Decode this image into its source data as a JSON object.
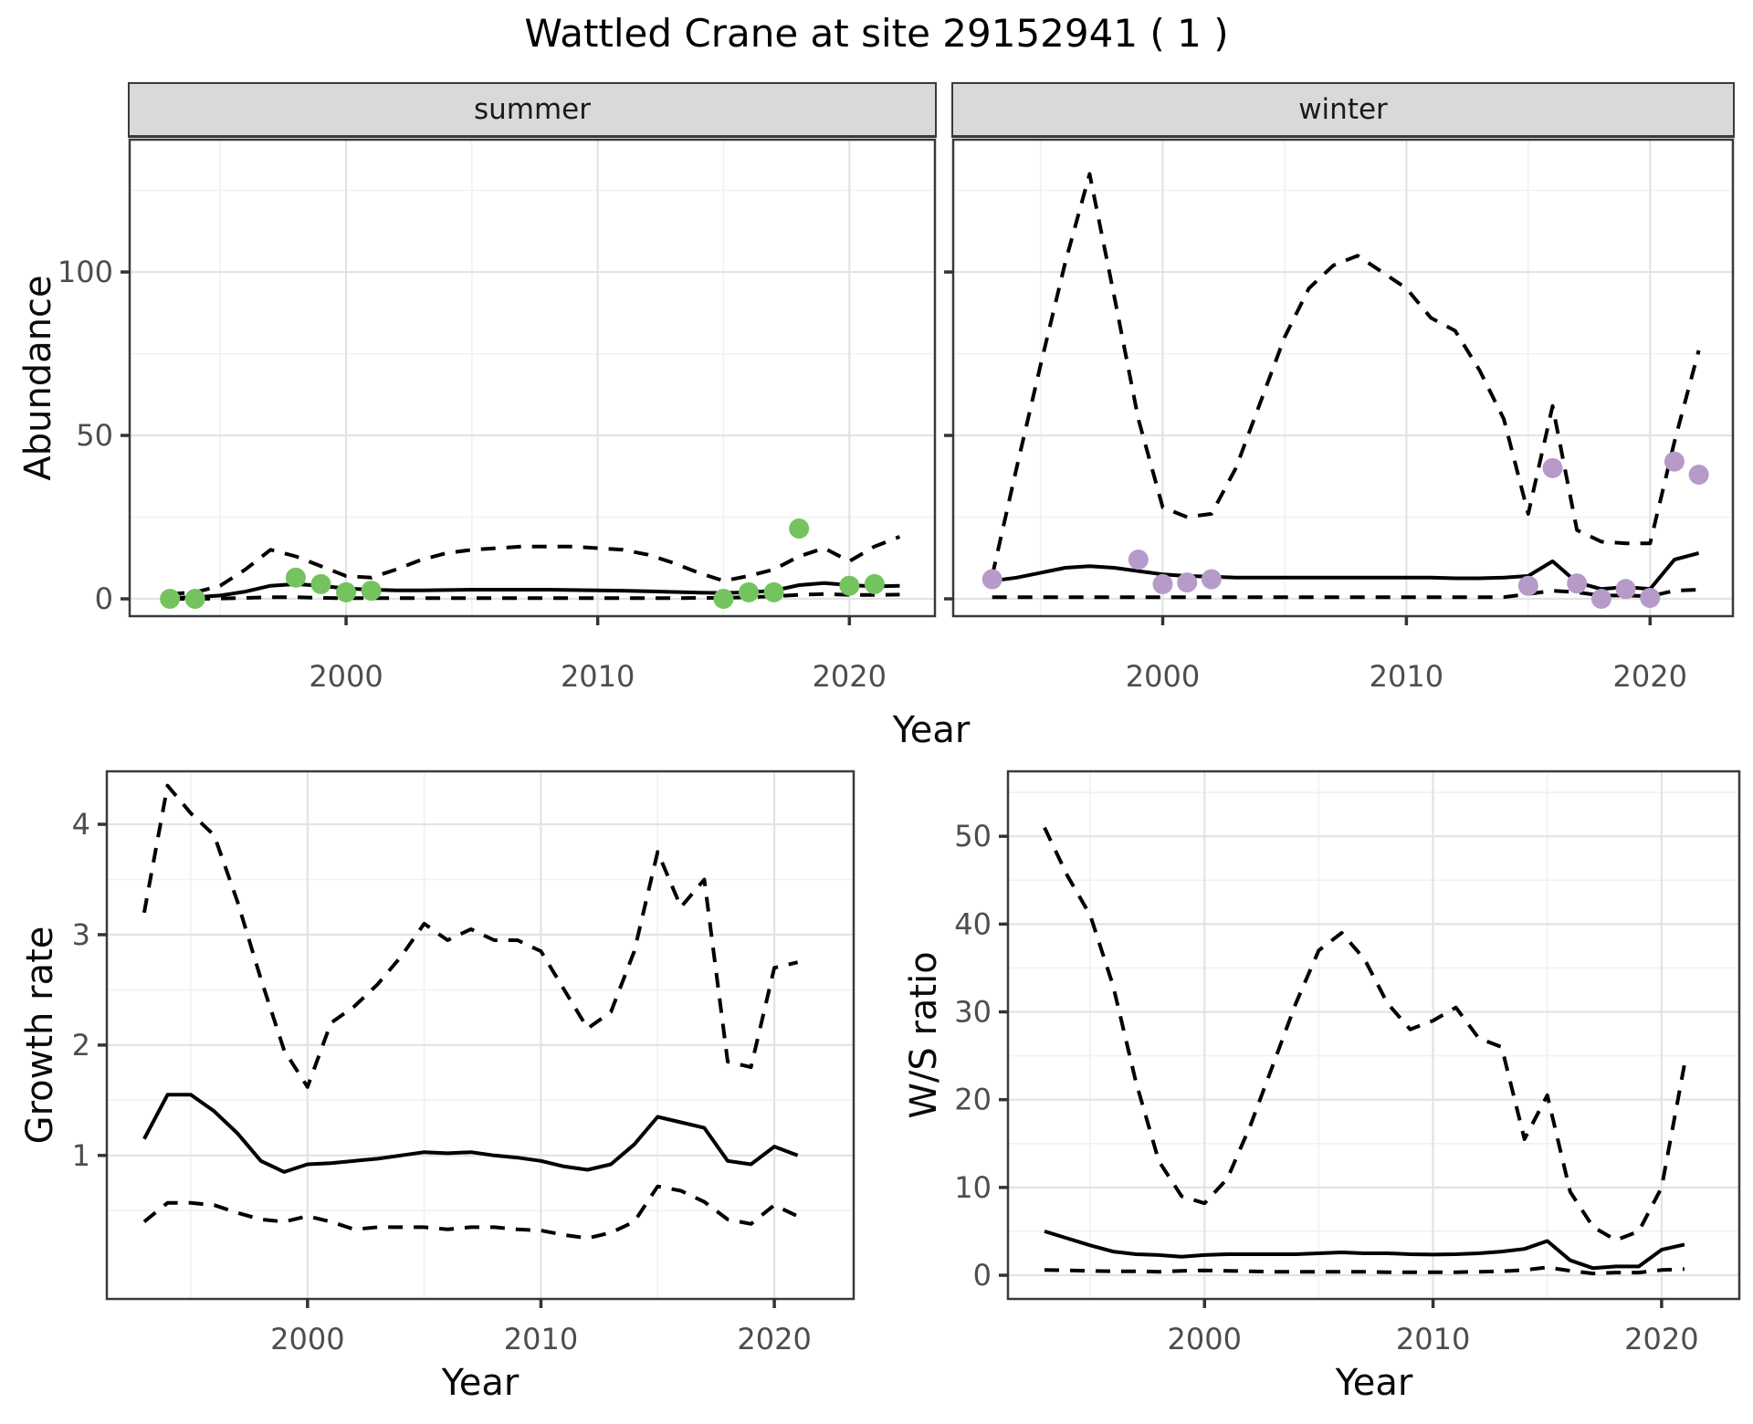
{
  "title": "Wattled Crane at site 29152941 ( 1 )",
  "xlabel": "Year",
  "colors": {
    "summer_points": "#74c35f",
    "winter_points": "#b69bc9",
    "line": "#000000",
    "grid_major": "#e3e3e3",
    "grid_minor": "#f1f1f1",
    "panel_border": "#3a3a3a",
    "strip_bg": "#d9d9d9",
    "tick_text": "#4d4d4d",
    "tick_mark": "#333333"
  },
  "chart_data": [
    {
      "id": "abundance-summer",
      "type": "line",
      "facet": "summer",
      "ylabel": "Abundance",
      "xlabel": "Year",
      "xlim": [
        1991.4,
        2023.4
      ],
      "ylim": [
        -5.3,
        140.5
      ],
      "x_ticks": [
        2000,
        2010,
        2020
      ],
      "x_minor": [
        1995,
        2005,
        2015
      ],
      "y_ticks": [
        0,
        50,
        100
      ],
      "y_minor": [
        25,
        75,
        125
      ],
      "years": [
        1993,
        1994,
        1995,
        1996,
        1997,
        1998,
        1999,
        2000,
        2001,
        2002,
        2003,
        2004,
        2005,
        2006,
        2007,
        2008,
        2009,
        2010,
        2011,
        2012,
        2013,
        2014,
        2015,
        2016,
        2017,
        2018,
        2019,
        2020,
        2021,
        2022
      ],
      "series": [
        {
          "name": "upper_ci",
          "style": "dashed",
          "values": [
            1.5,
            2,
            4,
            9,
            15,
            13,
            10,
            7,
            6.5,
            9,
            12,
            14,
            15,
            15.5,
            16,
            16,
            16,
            15.5,
            15,
            13.5,
            11,
            8,
            5.5,
            7,
            9,
            13,
            15.5,
            11.5,
            16,
            19
          ]
        },
        {
          "name": "median",
          "style": "solid",
          "values": [
            0.3,
            0.5,
            1,
            2.2,
            4,
            4.5,
            4,
            3.2,
            2.8,
            2.6,
            2.6,
            2.7,
            2.8,
            2.8,
            2.8,
            2.8,
            2.7,
            2.6,
            2.5,
            2.3,
            2.1,
            1.9,
            1.8,
            2,
            2.5,
            4.2,
            4.8,
            4.2,
            3.8,
            4
          ]
        },
        {
          "name": "lower_ci",
          "style": "dashed",
          "values": [
            0,
            0,
            0.1,
            0.3,
            0.5,
            0.5,
            0.3,
            0.2,
            0.2,
            0.2,
            0.2,
            0.2,
            0.2,
            0.2,
            0.2,
            0.2,
            0.2,
            0.2,
            0.2,
            0.2,
            0.2,
            0.3,
            0.3,
            0.5,
            0.8,
            1.2,
            1.5,
            1.2,
            1.2,
            1.3
          ]
        }
      ],
      "points": {
        "name": "observed-counts",
        "color_key": "summer_points",
        "years": [
          1993,
          1994,
          1998,
          1999,
          2000,
          2001,
          2015,
          2016,
          2017,
          2018,
          2020,
          2021
        ],
        "values": [
          0,
          0,
          6.5,
          4.5,
          2,
          2.5,
          0,
          2,
          2,
          21.5,
          4,
          4.5
        ]
      }
    },
    {
      "id": "abundance-winter",
      "type": "line",
      "facet": "winter",
      "ylabel": "Abundance",
      "xlabel": "Year",
      "xlim": [
        1991.4,
        2023.4
      ],
      "ylim": [
        -5.3,
        140.5
      ],
      "x_ticks": [
        2000,
        2010,
        2020
      ],
      "x_minor": [
        1995,
        2005,
        2015
      ],
      "y_ticks": [
        0,
        50,
        100
      ],
      "y_minor": [
        25,
        75,
        125
      ],
      "years": [
        1993,
        1994,
        1995,
        1996,
        1997,
        1998,
        1999,
        2000,
        2001,
        2002,
        2003,
        2004,
        2005,
        2006,
        2007,
        2008,
        2009,
        2010,
        2011,
        2012,
        2013,
        2014,
        2015,
        2016,
        2017,
        2018,
        2019,
        2020,
        2021,
        2022
      ],
      "series": [
        {
          "name": "upper_ci",
          "style": "dashed",
          "values": [
            7,
            40,
            72,
            103,
            130,
            93,
            55,
            28,
            25,
            26,
            40,
            60,
            80,
            95,
            102,
            105,
            100,
            95,
            86,
            82,
            70,
            55,
            26,
            59,
            21,
            17.5,
            17,
            17,
            48,
            76
          ]
        },
        {
          "name": "median",
          "style": "solid",
          "values": [
            5.5,
            6.5,
            8,
            9.5,
            10,
            9.5,
            8.5,
            7.5,
            7,
            6.8,
            6.5,
            6.5,
            6.5,
            6.5,
            6.5,
            6.5,
            6.5,
            6.5,
            6.5,
            6.3,
            6.3,
            6.5,
            7,
            11.5,
            5,
            3,
            3.6,
            3,
            12,
            14
          ]
        },
        {
          "name": "lower_ci",
          "style": "dashed",
          "values": [
            0.5,
            0.5,
            0.5,
            0.5,
            0.5,
            0.5,
            0.5,
            0.5,
            0.5,
            0.5,
            0.5,
            0.5,
            0.5,
            0.5,
            0.5,
            0.5,
            0.5,
            0.5,
            0.5,
            0.5,
            0.5,
            0.5,
            1.5,
            2.5,
            2,
            1,
            1,
            0.8,
            2.5,
            2.8
          ]
        }
      ],
      "points": {
        "name": "observed-counts",
        "color_key": "winter_points",
        "years": [
          1993,
          1999,
          2000,
          2001,
          2002,
          2015,
          2016,
          2017,
          2018,
          2019,
          2020,
          2021,
          2022
        ],
        "values": [
          6,
          12,
          4.5,
          5,
          6,
          4,
          40,
          4.7,
          0,
          3,
          0.3,
          42,
          38
        ]
      }
    },
    {
      "id": "growth-rate",
      "type": "line",
      "facet": null,
      "ylabel": "Growth rate",
      "xlabel": "Year",
      "xlim": [
        1991.4,
        2023.4
      ],
      "ylim": [
        -0.3,
        4.48
      ],
      "x_ticks": [
        2000,
        2010,
        2020
      ],
      "x_minor": [
        1995,
        2005,
        2015
      ],
      "y_ticks": [
        1,
        2,
        3,
        4
      ],
      "y_minor": [
        0.5,
        1.5,
        2.5,
        3.5
      ],
      "years": [
        1993,
        1994,
        1995,
        1996,
        1997,
        1998,
        1999,
        2000,
        2001,
        2002,
        2003,
        2004,
        2005,
        2006,
        2007,
        2008,
        2009,
        2010,
        2011,
        2012,
        2013,
        2014,
        2015,
        2016,
        2017,
        2018,
        2019,
        2020,
        2021
      ],
      "series": [
        {
          "name": "upper_ci",
          "style": "dashed",
          "values": [
            3.2,
            4.35,
            4.1,
            3.9,
            3.3,
            2.6,
            1.95,
            1.62,
            2.2,
            2.35,
            2.55,
            2.8,
            3.1,
            2.95,
            3.05,
            2.95,
            2.95,
            2.85,
            2.5,
            2.15,
            2.3,
            2.85,
            3.75,
            3.25,
            3.5,
            1.85,
            1.8,
            2.7,
            2.75
          ]
        },
        {
          "name": "median",
          "style": "solid",
          "values": [
            1.15,
            1.55,
            1.55,
            1.4,
            1.2,
            0.95,
            0.85,
            0.92,
            0.93,
            0.95,
            0.97,
            1.0,
            1.03,
            1.02,
            1.03,
            1.0,
            0.98,
            0.95,
            0.9,
            0.87,
            0.92,
            1.1,
            1.35,
            1.3,
            1.25,
            0.95,
            0.92,
            1.08,
            1.0
          ]
        },
        {
          "name": "lower_ci",
          "style": "dashed",
          "values": [
            0.4,
            0.57,
            0.57,
            0.55,
            0.48,
            0.42,
            0.4,
            0.45,
            0.4,
            0.33,
            0.35,
            0.35,
            0.35,
            0.33,
            0.35,
            0.35,
            0.33,
            0.32,
            0.28,
            0.25,
            0.3,
            0.4,
            0.72,
            0.68,
            0.58,
            0.42,
            0.38,
            0.55,
            0.45
          ]
        }
      ],
      "points": null
    },
    {
      "id": "ws-ratio",
      "type": "line",
      "facet": null,
      "ylabel": "W/S ratio",
      "xlabel": "Year",
      "xlim": [
        1991.4,
        2023.4
      ],
      "ylim": [
        -2.7,
        57.4
      ],
      "x_ticks": [
        2000,
        2010,
        2020
      ],
      "x_minor": [
        1995,
        2005,
        2015
      ],
      "y_ticks": [
        0,
        10,
        20,
        30,
        40,
        50
      ],
      "y_minor": [
        5,
        15,
        25,
        35,
        45,
        55
      ],
      "years": [
        1993,
        1994,
        1995,
        1996,
        1997,
        1998,
        1999,
        2000,
        2001,
        2002,
        2003,
        2004,
        2005,
        2006,
        2007,
        2008,
        2009,
        2010,
        2011,
        2012,
        2013,
        2014,
        2015,
        2016,
        2017,
        2018,
        2019,
        2020,
        2021
      ],
      "series": [
        {
          "name": "upper_ci",
          "style": "dashed",
          "values": [
            51,
            45.5,
            41,
            33,
            22,
            13,
            9,
            8.2,
            11,
            17,
            24,
            31,
            37,
            39,
            36,
            31,
            28,
            29,
            30.5,
            27,
            26,
            15.5,
            20.5,
            9.5,
            5.5,
            4,
            5,
            10,
            24
          ]
        },
        {
          "name": "median",
          "style": "solid",
          "values": [
            5,
            4.2,
            3.4,
            2.7,
            2.4,
            2.3,
            2.1,
            2.3,
            2.4,
            2.4,
            2.4,
            2.4,
            2.5,
            2.6,
            2.5,
            2.5,
            2.4,
            2.35,
            2.4,
            2.5,
            2.7,
            3.0,
            3.9,
            1.7,
            0.8,
            1.0,
            1.0,
            2.9,
            3.5
          ]
        },
        {
          "name": "lower_ci",
          "style": "dashed",
          "values": [
            0.6,
            0.55,
            0.5,
            0.45,
            0.45,
            0.4,
            0.5,
            0.55,
            0.5,
            0.45,
            0.4,
            0.4,
            0.4,
            0.4,
            0.4,
            0.35,
            0.35,
            0.35,
            0.35,
            0.4,
            0.45,
            0.6,
            0.9,
            0.5,
            0.2,
            0.3,
            0.3,
            0.6,
            0.7
          ]
        }
      ],
      "points": null
    }
  ]
}
